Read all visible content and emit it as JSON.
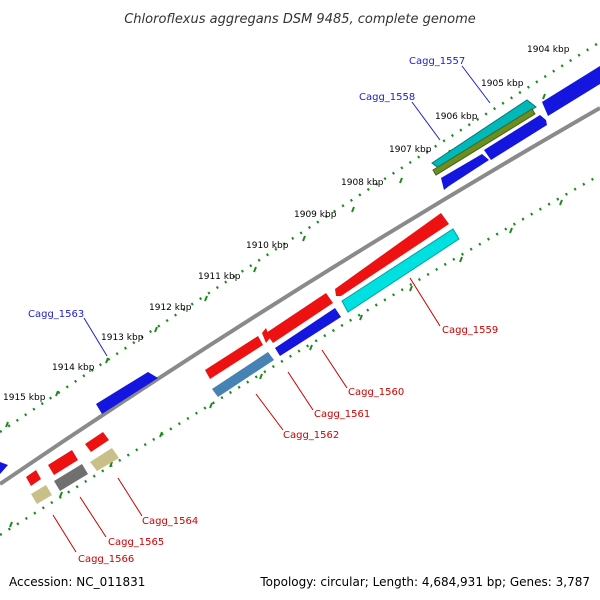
{
  "title": "Chloroflexus aggregans DSM 9485, complete genome",
  "footer": {
    "accession": "Accession: NC_011831",
    "summary": "Topology: circular; Length: 4,684,931 bp; Genes: 3,787"
  },
  "colors": {
    "backbone": "#8a8a8a",
    "tick": "#1e8a1e",
    "label_forward": "#2020cc",
    "label_reverse": "#cc0000",
    "title": "#333333"
  },
  "scale_labels": [
    "1904 kbp",
    "1905 kbp",
    "1906 kbp",
    "1907 kbp",
    "1908 kbp",
    "1909 kbp",
    "1910 kbp",
    "1911 kbp",
    "1912 kbp",
    "1913 kbp",
    "1914 kbp",
    "1915 kbp"
  ],
  "genes": [
    {
      "id": "Cagg_1557",
      "color": "#00b8b8",
      "strand": "forward"
    },
    {
      "id": "Cagg_1558",
      "color": "#6b8e23",
      "strand": "forward"
    },
    {
      "id": "Cagg_1559",
      "color": "#00e0e0",
      "strand": "reverse"
    },
    {
      "id": "Cagg_1560",
      "color": "#1515e0",
      "strand": "reverse"
    },
    {
      "id": "Cagg_1561",
      "color": "#4682b4",
      "strand": "reverse"
    },
    {
      "id": "Cagg_1562",
      "color": "#ee1111",
      "strand": "reverse"
    },
    {
      "id": "Cagg_1563",
      "color": "#1515e0",
      "strand": "forward"
    },
    {
      "id": "Cagg_1564",
      "color": "#c8c088",
      "strand": "reverse"
    },
    {
      "id": "Cagg_1565",
      "color": "#707070",
      "strand": "reverse"
    },
    {
      "id": "Cagg_1566",
      "color": "#c8c088",
      "strand": "reverse"
    }
  ]
}
